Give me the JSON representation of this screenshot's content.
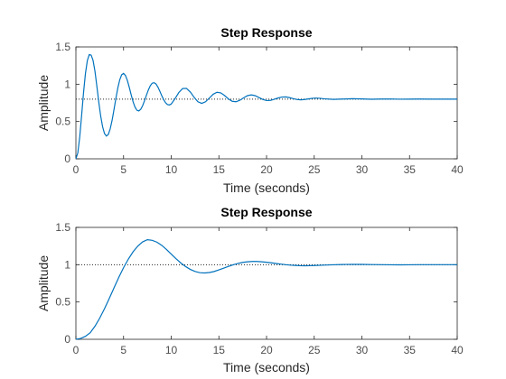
{
  "chart_data": [
    {
      "type": "line",
      "title": "Step Response",
      "xlabel": "Time (seconds)",
      "ylabel": "Amplitude",
      "xlim": [
        0,
        40
      ],
      "ylim": [
        0,
        1.5
      ],
      "xticks": [
        "0",
        "5",
        "10",
        "15",
        "20",
        "25",
        "30",
        "35",
        "40"
      ],
      "yticks": [
        "0",
        "0.5",
        "1",
        "1.5"
      ],
      "grid": false,
      "line_color": "#0072bd",
      "reference": {
        "y": 0.8,
        "style": "dotted"
      },
      "series": [
        {
          "x": [
            0,
            0.2,
            0.4,
            0.6,
            0.8,
            1.0,
            1.2,
            1.4,
            1.6,
            1.8,
            2.0,
            2.2,
            2.4,
            2.6,
            2.8,
            3.0,
            3.2,
            3.4,
            3.6,
            3.8,
            4.0,
            4.2,
            4.4,
            4.6,
            4.8,
            5.0,
            5.2,
            5.4,
            5.6,
            5.8,
            6.0,
            6.2,
            6.4,
            6.6,
            6.8,
            7.0,
            7.2,
            7.4,
            7.6,
            7.8,
            8.0,
            8.2,
            8.4,
            8.6,
            8.8,
            9.0,
            9.2,
            9.4,
            9.6,
            9.8,
            10.0,
            10.4,
            10.8,
            11.2,
            11.6,
            12.0,
            12.4,
            12.8,
            13.2,
            13.6,
            14.0,
            14.4,
            14.8,
            15.2,
            15.6,
            16.0,
            16.4,
            16.8,
            17.2,
            17.6,
            18.0,
            18.4,
            18.8,
            19.2,
            19.6,
            20.0,
            20.4,
            20.8,
            21.2,
            21.6,
            22.0,
            22.4,
            22.8,
            23.2,
            23.6,
            24.0,
            24.4,
            24.8,
            25.2,
            25.6,
            26.0,
            27,
            28,
            29,
            30,
            31,
            32,
            33,
            34,
            35,
            36,
            37,
            38,
            39,
            40
          ],
          "values": [
            0,
            0.078,
            0.291,
            0.582,
            0.885,
            1.142,
            1.317,
            1.397,
            1.39,
            1.319,
            1.174,
            0.972,
            0.76,
            0.574,
            0.431,
            0.339,
            0.305,
            0.327,
            0.402,
            0.518,
            0.662,
            0.814,
            0.952,
            1.06,
            1.126,
            1.145,
            1.117,
            1.05,
            0.958,
            0.857,
            0.764,
            0.693,
            0.651,
            0.642,
            0.664,
            0.712,
            0.779,
            0.853,
            0.923,
            0.979,
            1.013,
            1.021,
            1.003,
            0.963,
            0.908,
            0.849,
            0.795,
            0.753,
            0.728,
            0.722,
            0.735,
            0.807,
            0.889,
            0.942,
            0.944,
            0.896,
            0.825,
            0.765,
            0.743,
            0.765,
            0.815,
            0.866,
            0.892,
            0.884,
            0.848,
            0.803,
            0.771,
            0.765,
            0.785,
            0.818,
            0.847,
            0.857,
            0.847,
            0.822,
            0.796,
            0.781,
            0.783,
            0.797,
            0.815,
            0.828,
            0.83,
            0.821,
            0.807,
            0.795,
            0.791,
            0.795,
            0.803,
            0.811,
            0.814,
            0.811,
            0.805,
            0.797,
            0.801,
            0.806,
            0.803,
            0.798,
            0.801,
            0.802,
            0.799,
            0.8,
            0.801,
            0.8,
            0.8,
            0.8,
            0.8
          ]
        }
      ]
    },
    {
      "type": "line",
      "title": "Step Response",
      "xlabel": "Time (seconds)",
      "ylabel": "Amplitude",
      "xlim": [
        0,
        40
      ],
      "ylim": [
        0,
        1.5
      ],
      "xticks": [
        "0",
        "5",
        "10",
        "15",
        "20",
        "25",
        "30",
        "35",
        "40"
      ],
      "yticks": [
        "0",
        "0.5",
        "1",
        "1.5"
      ],
      "grid": false,
      "line_color": "#0072bd",
      "reference": {
        "y": 1.0,
        "style": "dotted"
      },
      "series": [
        {
          "x": [
            0,
            0.5,
            1.0,
            1.5,
            2.0,
            2.5,
            3.0,
            3.5,
            4.0,
            4.5,
            5.0,
            5.5,
            6.0,
            6.5,
            7.0,
            7.5,
            8.0,
            8.5,
            9.0,
            9.5,
            10.0,
            10.5,
            11.0,
            11.5,
            12.0,
            12.5,
            13.0,
            13.5,
            14.0,
            14.5,
            15.0,
            15.5,
            16.0,
            16.5,
            17.0,
            17.5,
            18.0,
            18.5,
            19.0,
            19.5,
            20.0,
            20.5,
            21.0,
            21.5,
            22.0,
            22.5,
            23.0,
            23.5,
            24.0,
            24.5,
            25.0,
            26,
            27,
            28,
            29,
            30,
            31,
            32,
            33,
            34,
            35,
            36,
            37,
            38,
            39,
            40
          ],
          "values": [
            0,
            0.011,
            0.04,
            0.088,
            0.175,
            0.284,
            0.41,
            0.548,
            0.69,
            0.83,
            0.96,
            1.075,
            1.173,
            1.25,
            1.306,
            1.335,
            1.327,
            1.302,
            1.26,
            1.205,
            1.142,
            1.081,
            1.024,
            0.976,
            0.937,
            0.909,
            0.893,
            0.889,
            0.895,
            0.909,
            0.93,
            0.953,
            0.977,
            0.999,
            1.017,
            1.031,
            1.039,
            1.043,
            1.043,
            1.039,
            1.033,
            1.025,
            1.016,
            1.008,
            1.0,
            0.994,
            0.99,
            0.987,
            0.986,
            0.987,
            0.989,
            0.994,
            0.999,
            1.003,
            1.005,
            1.004,
            1.002,
            1.0,
            0.999,
            0.998,
            0.999,
            1.0,
            1.0,
            1.0,
            1.0,
            1.0
          ]
        }
      ]
    }
  ]
}
